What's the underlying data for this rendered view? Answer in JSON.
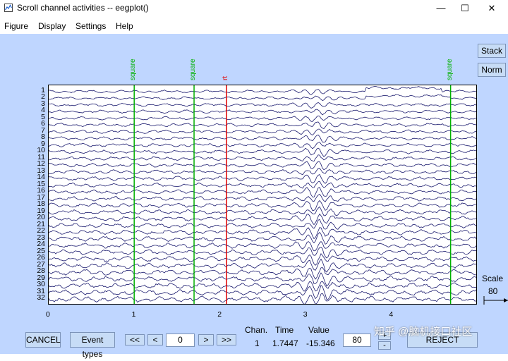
{
  "window": {
    "title": "Scroll channel activities -- eegplot()",
    "minimize": "—",
    "maximize": "☐",
    "close": "✕"
  },
  "menu": {
    "items": [
      "Figure",
      "Display",
      "Settings",
      "Help"
    ],
    "dock_glyph": "↘"
  },
  "side_buttons": {
    "stack": "Stack",
    "norm": "Norm"
  },
  "channels": [
    "1",
    "2",
    "3",
    "4",
    "5",
    "6",
    "7",
    "8",
    "9",
    "10",
    "11",
    "12",
    "13",
    "14",
    "15",
    "16",
    "17",
    "18",
    "19",
    "20",
    "21",
    "22",
    "23",
    "24",
    "25",
    "26",
    "27",
    "28",
    "29",
    "30",
    "31",
    "32"
  ],
  "x_ticks": [
    "0",
    "1",
    "2",
    "3",
    "4"
  ],
  "events": [
    {
      "label": "square",
      "time": 1.0,
      "color": "#00b000"
    },
    {
      "label": "square",
      "time": 1.7,
      "color": "#00b000"
    },
    {
      "label": "rt",
      "time": 2.08,
      "color": "#e00000"
    },
    {
      "label": "square",
      "time": 4.7,
      "color": "#00b000"
    }
  ],
  "scale": {
    "label": "Scale",
    "value": "80"
  },
  "bottom": {
    "cancel": "CANCEL",
    "event_types": "Event types",
    "prev_page": "<<",
    "prev": "<",
    "position": "0",
    "next": ">",
    "next_page": ">>",
    "chan_label": "Chan.",
    "time_label": "Time",
    "value_label": "Value",
    "chan_value": "1",
    "time_value": "1.7447",
    "value_value": "-15.346",
    "scale_input": "80",
    "plus": "+",
    "minus": "-",
    "reject": "REJECT"
  },
  "watermark": "知乎 @脑机接口社区",
  "colors": {
    "figure_bg": "#bfd6ff",
    "trace": "#1a1a6e",
    "event_green": "#00b000",
    "event_red": "#e00000",
    "button": "#c7dcf6"
  }
}
